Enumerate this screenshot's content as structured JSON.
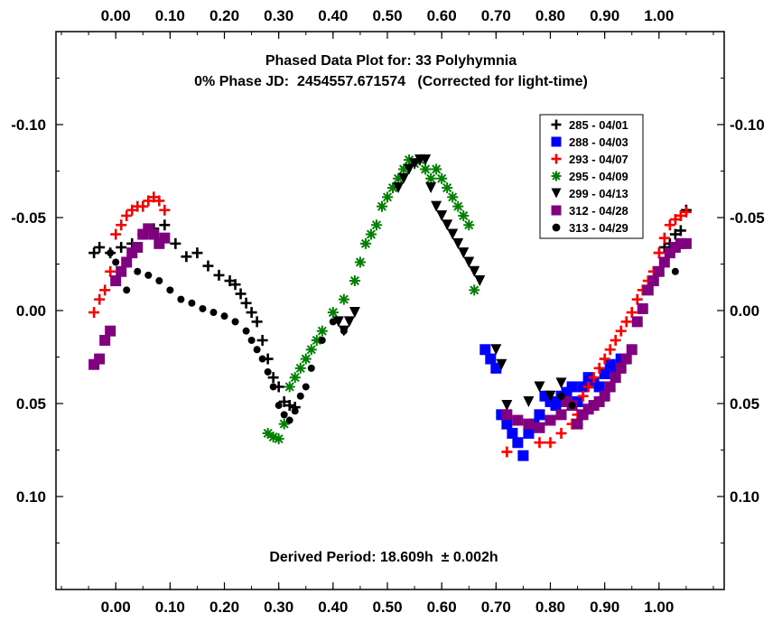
{
  "chart_data": {
    "type": "scatter",
    "title": "Phased Data Plot for: 33 Polyhymnia",
    "subtitle": "0% Phase JD:  2454557.671574   (Corrected for light-time)",
    "annotation": "Derived Period: 18.609h  ± 0.002h",
    "x_axis": {
      "range": [
        -0.11,
        1.12
      ],
      "ticks": [
        0.0,
        0.1,
        0.2,
        0.3,
        0.4,
        0.5,
        0.6,
        0.7,
        0.8,
        0.9,
        1.0
      ],
      "tick_labels": [
        "0.00",
        "0.10",
        "0.20",
        "0.30",
        "0.40",
        "0.50",
        "0.60",
        "0.70",
        "0.80",
        "0.90",
        "1.00"
      ]
    },
    "y_axis": {
      "range": [
        -0.15,
        0.15
      ],
      "inverted": true,
      "ticks": [
        -0.1,
        -0.05,
        0.0,
        0.05,
        0.1
      ],
      "tick_labels": [
        "-0.10",
        "-0.05",
        "0.00",
        "0.05",
        "0.10"
      ]
    },
    "grid": false,
    "legend_position": "top-right",
    "series": [
      {
        "name": "285 - 04/01",
        "color": "#000000",
        "marker": "plus",
        "points": [
          [
            -0.04,
            -0.031
          ],
          [
            -0.03,
            -0.034
          ],
          [
            -0.01,
            -0.031
          ],
          [
            0.01,
            -0.034
          ],
          [
            0.03,
            -0.036
          ],
          [
            0.05,
            -0.041
          ],
          [
            0.07,
            -0.044
          ],
          [
            0.09,
            -0.046
          ],
          [
            0.11,
            -0.036
          ],
          [
            0.13,
            -0.029
          ],
          [
            0.15,
            -0.031
          ],
          [
            0.17,
            -0.024
          ],
          [
            0.19,
            -0.019
          ],
          [
            0.21,
            -0.016
          ],
          [
            0.22,
            -0.014
          ],
          [
            0.23,
            -0.009
          ],
          [
            0.24,
            -0.004
          ],
          [
            0.25,
            0.001
          ],
          [
            0.26,
            0.006
          ],
          [
            0.27,
            0.016
          ],
          [
            0.28,
            0.026
          ],
          [
            0.29,
            0.036
          ],
          [
            0.3,
            0.041
          ],
          [
            0.31,
            0.049
          ],
          [
            0.32,
            0.051
          ],
          [
            0.33,
            0.052
          ],
          [
            1.0,
            -0.031
          ],
          [
            1.01,
            -0.034
          ],
          [
            1.02,
            -0.036
          ],
          [
            1.03,
            -0.041
          ],
          [
            1.04,
            -0.043
          ],
          [
            1.05,
            -0.054
          ]
        ]
      },
      {
        "name": "288 - 04/03",
        "color": "#0000ff",
        "marker": "square",
        "points": [
          [
            0.68,
            0.021
          ],
          [
            0.69,
            0.026
          ],
          [
            0.7,
            0.031
          ],
          [
            0.71,
            0.056
          ],
          [
            0.72,
            0.061
          ],
          [
            0.73,
            0.066
          ],
          [
            0.74,
            0.071
          ],
          [
            0.75,
            0.078
          ],
          [
            0.76,
            0.066
          ],
          [
            0.77,
            0.061
          ],
          [
            0.78,
            0.056
          ],
          [
            0.79,
            0.046
          ],
          [
            0.8,
            0.049
          ],
          [
            0.81,
            0.051
          ],
          [
            0.82,
            0.046
          ],
          [
            0.83,
            0.044
          ],
          [
            0.84,
            0.041
          ],
          [
            0.85,
            0.049
          ],
          [
            0.86,
            0.041
          ],
          [
            0.87,
            0.036
          ],
          [
            0.88,
            0.039
          ],
          [
            0.89,
            0.041
          ],
          [
            0.9,
            0.034
          ],
          [
            0.91,
            0.029
          ],
          [
            0.92,
            0.031
          ],
          [
            0.93,
            0.026
          ]
        ]
      },
      {
        "name": "293 - 04/07",
        "color": "#ff0000",
        "marker": "plus",
        "points": [
          [
            -0.04,
            0.001
          ],
          [
            -0.03,
            -0.006
          ],
          [
            -0.02,
            -0.011
          ],
          [
            -0.01,
            -0.021
          ],
          [
            0.0,
            -0.041
          ],
          [
            0.01,
            -0.046
          ],
          [
            0.02,
            -0.051
          ],
          [
            0.03,
            -0.054
          ],
          [
            0.04,
            -0.056
          ],
          [
            0.05,
            -0.056
          ],
          [
            0.06,
            -0.059
          ],
          [
            0.07,
            -0.061
          ],
          [
            0.08,
            -0.059
          ],
          [
            0.09,
            -0.054
          ],
          [
            0.72,
            0.076
          ],
          [
            0.78,
            0.071
          ],
          [
            0.8,
            0.071
          ],
          [
            0.82,
            0.066
          ],
          [
            0.84,
            0.061
          ],
          [
            0.85,
            0.056
          ],
          [
            0.86,
            0.046
          ],
          [
            0.87,
            0.041
          ],
          [
            0.88,
            0.036
          ],
          [
            0.89,
            0.031
          ],
          [
            0.9,
            0.026
          ],
          [
            0.91,
            0.021
          ],
          [
            0.92,
            0.016
          ],
          [
            0.93,
            0.011
          ],
          [
            0.94,
            0.006
          ],
          [
            0.95,
            0.001
          ],
          [
            0.96,
            -0.006
          ],
          [
            0.97,
            -0.011
          ],
          [
            0.98,
            -0.016
          ],
          [
            0.99,
            -0.021
          ],
          [
            1.0,
            -0.031
          ],
          [
            1.01,
            -0.039
          ],
          [
            1.02,
            -0.046
          ],
          [
            1.03,
            -0.049
          ],
          [
            1.04,
            -0.051
          ],
          [
            1.05,
            -0.053
          ]
        ]
      },
      {
        "name": "295 - 04/09",
        "color": "#008000",
        "marker": "asterisk",
        "points": [
          [
            0.28,
            0.066
          ],
          [
            0.29,
            0.068
          ],
          [
            0.3,
            0.069
          ],
          [
            0.31,
            0.061
          ],
          [
            0.32,
            0.041
          ],
          [
            0.33,
            0.036
          ],
          [
            0.34,
            0.031
          ],
          [
            0.35,
            0.026
          ],
          [
            0.36,
            0.021
          ],
          [
            0.37,
            0.016
          ],
          [
            0.38,
            0.011
          ],
          [
            0.4,
            0.001
          ],
          [
            0.42,
            -0.006
          ],
          [
            0.44,
            -0.016
          ],
          [
            0.45,
            -0.026
          ],
          [
            0.46,
            -0.036
          ],
          [
            0.47,
            -0.041
          ],
          [
            0.48,
            -0.046
          ],
          [
            0.49,
            -0.056
          ],
          [
            0.5,
            -0.061
          ],
          [
            0.51,
            -0.066
          ],
          [
            0.52,
            -0.071
          ],
          [
            0.53,
            -0.076
          ],
          [
            0.54,
            -0.081
          ],
          [
            0.55,
            -0.079
          ],
          [
            0.56,
            -0.081
          ],
          [
            0.57,
            -0.076
          ],
          [
            0.58,
            -0.071
          ],
          [
            0.59,
            -0.076
          ],
          [
            0.6,
            -0.071
          ],
          [
            0.61,
            -0.066
          ],
          [
            0.62,
            -0.061
          ],
          [
            0.63,
            -0.056
          ],
          [
            0.64,
            -0.051
          ],
          [
            0.65,
            -0.046
          ],
          [
            0.66,
            -0.011
          ]
        ]
      },
      {
        "name": "299 - 04/13",
        "color": "#000000",
        "marker": "triangle-down",
        "points": [
          [
            0.41,
            0.006
          ],
          [
            0.42,
            0.011
          ],
          [
            0.43,
            0.006
          ],
          [
            0.44,
            0.001
          ],
          [
            0.52,
            -0.066
          ],
          [
            0.53,
            -0.071
          ],
          [
            0.54,
            -0.076
          ],
          [
            0.55,
            -0.079
          ],
          [
            0.56,
            -0.081
          ],
          [
            0.57,
            -0.081
          ],
          [
            0.58,
            -0.066
          ],
          [
            0.59,
            -0.056
          ],
          [
            0.6,
            -0.051
          ],
          [
            0.61,
            -0.046
          ],
          [
            0.62,
            -0.041
          ],
          [
            0.63,
            -0.036
          ],
          [
            0.64,
            -0.031
          ],
          [
            0.65,
            -0.026
          ],
          [
            0.66,
            -0.021
          ],
          [
            0.67,
            -0.016
          ],
          [
            0.7,
            0.021
          ],
          [
            0.71,
            0.029
          ],
          [
            0.72,
            0.051
          ],
          [
            0.76,
            0.049
          ],
          [
            0.78,
            0.041
          ],
          [
            0.8,
            0.046
          ],
          [
            0.82,
            0.039
          ],
          [
            0.84,
            0.051
          ]
        ]
      },
      {
        "name": "312 - 04/28",
        "color": "#800080",
        "marker": "square",
        "points": [
          [
            -0.04,
            0.029
          ],
          [
            -0.03,
            0.026
          ],
          [
            -0.02,
            0.016
          ],
          [
            -0.01,
            0.011
          ],
          [
            0.0,
            -0.016
          ],
          [
            0.01,
            -0.021
          ],
          [
            0.02,
            -0.026
          ],
          [
            0.03,
            -0.031
          ],
          [
            0.04,
            -0.034
          ],
          [
            0.05,
            -0.041
          ],
          [
            0.06,
            -0.044
          ],
          [
            0.07,
            -0.041
          ],
          [
            0.08,
            -0.036
          ],
          [
            0.09,
            -0.039
          ],
          [
            0.72,
            0.056
          ],
          [
            0.74,
            0.059
          ],
          [
            0.76,
            0.061
          ],
          [
            0.78,
            0.063
          ],
          [
            0.8,
            0.059
          ],
          [
            0.82,
            0.056
          ],
          [
            0.83,
            0.049
          ],
          [
            0.84,
            0.051
          ],
          [
            0.85,
            0.061
          ],
          [
            0.86,
            0.056
          ],
          [
            0.87,
            0.053
          ],
          [
            0.88,
            0.051
          ],
          [
            0.89,
            0.049
          ],
          [
            0.9,
            0.046
          ],
          [
            0.91,
            0.041
          ],
          [
            0.92,
            0.036
          ],
          [
            0.93,
            0.031
          ],
          [
            0.94,
            0.026
          ],
          [
            0.95,
            0.021
          ],
          [
            0.96,
            0.006
          ],
          [
            0.97,
            -0.001
          ],
          [
            0.98,
            -0.011
          ],
          [
            0.99,
            -0.016
          ],
          [
            1.0,
            -0.021
          ],
          [
            1.01,
            -0.026
          ],
          [
            1.02,
            -0.031
          ],
          [
            1.03,
            -0.034
          ],
          [
            1.04,
            -0.036
          ],
          [
            1.05,
            -0.036
          ]
        ]
      },
      {
        "name": "313 - 04/29",
        "color": "#000000",
        "marker": "circle",
        "points": [
          [
            -0.01,
            -0.031
          ],
          [
            0.0,
            -0.026
          ],
          [
            0.02,
            -0.011
          ],
          [
            0.04,
            -0.021
          ],
          [
            0.06,
            -0.019
          ],
          [
            0.08,
            -0.016
          ],
          [
            0.1,
            -0.011
          ],
          [
            0.12,
            -0.006
          ],
          [
            0.14,
            -0.004
          ],
          [
            0.16,
            -0.001
          ],
          [
            0.18,
            0.001
          ],
          [
            0.2,
            0.003
          ],
          [
            0.22,
            0.006
          ],
          [
            0.24,
            0.011
          ],
          [
            0.25,
            0.016
          ],
          [
            0.26,
            0.021
          ],
          [
            0.27,
            0.026
          ],
          [
            0.28,
            0.033
          ],
          [
            0.29,
            0.041
          ],
          [
            0.3,
            0.051
          ],
          [
            0.31,
            0.056
          ],
          [
            0.32,
            0.059
          ],
          [
            0.33,
            0.054
          ],
          [
            0.34,
            0.046
          ],
          [
            0.35,
            0.041
          ],
          [
            0.36,
            0.031
          ],
          [
            0.38,
            0.016
          ],
          [
            0.4,
            0.006
          ],
          [
            0.42,
            0.011
          ],
          [
            0.82,
            0.046
          ],
          [
            0.84,
            0.051
          ],
          [
            1.03,
            -0.021
          ]
        ]
      }
    ]
  }
}
